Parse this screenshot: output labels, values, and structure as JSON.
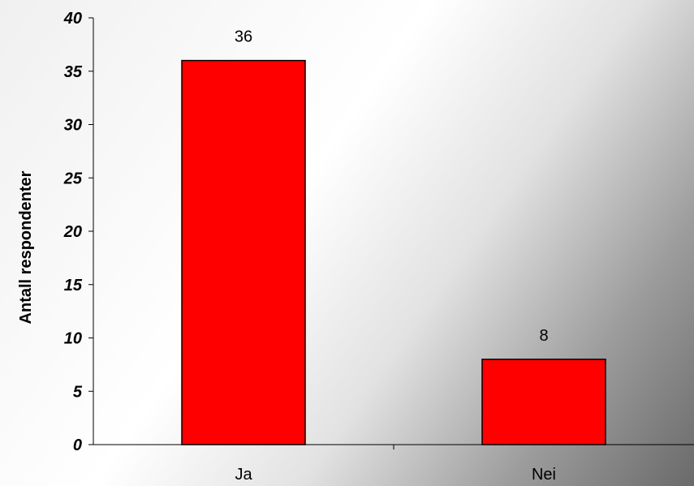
{
  "chart_data": {
    "type": "bar",
    "title": "",
    "xlabel": "",
    "ylabel": "Antall respondenter",
    "categories": [
      "Ja",
      "Nei"
    ],
    "values": [
      36,
      8
    ],
    "data_labels": [
      "36",
      "8"
    ],
    "ylim": [
      0,
      40
    ],
    "yticks": [
      "0",
      "5",
      "10",
      "15",
      "20",
      "25",
      "30",
      "35",
      "40"
    ],
    "ytick_values": [
      0,
      5,
      10,
      15,
      20,
      25,
      30,
      35,
      40
    ],
    "grid": false,
    "legend": "none",
    "bar_color": "#ff0000",
    "bar_edge_color": "#000000"
  }
}
